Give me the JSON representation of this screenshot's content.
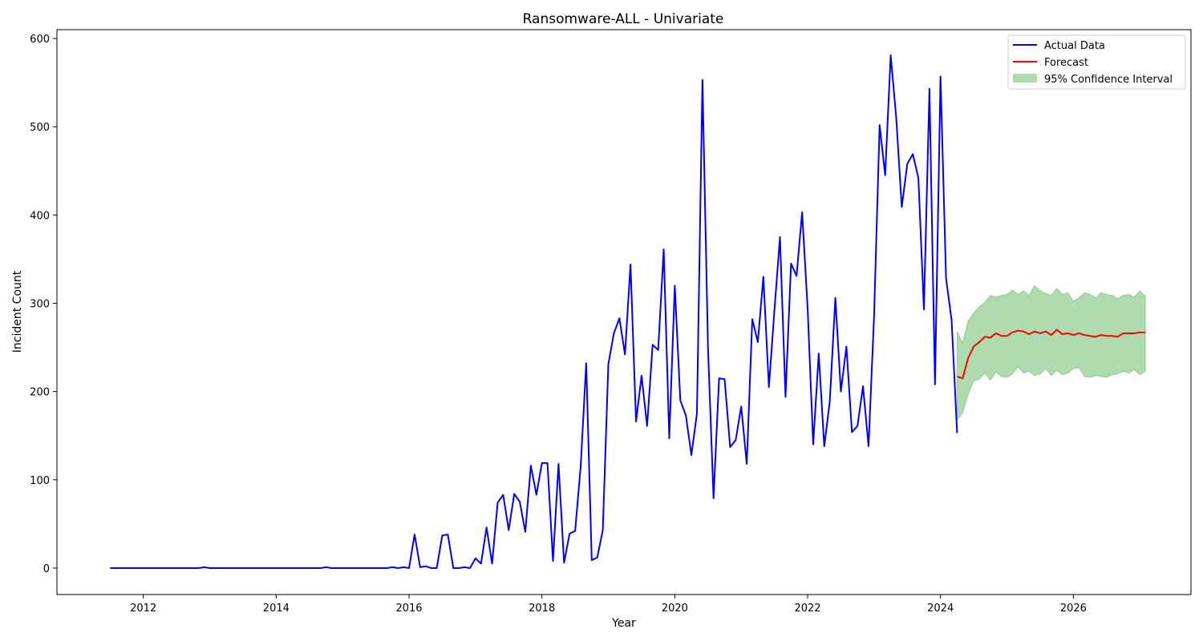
{
  "chart_data": {
    "type": "line",
    "title": "Ransomware-ALL - Univariate",
    "xlabel": "Year",
    "ylabel": "Incident Count",
    "xlim": [
      2010.7,
      2027.77
    ],
    "ylim": [
      -30,
      610
    ],
    "x_ticks": [
      2012,
      2014,
      2016,
      2018,
      2020,
      2022,
      2024,
      2026
    ],
    "y_ticks": [
      0,
      100,
      200,
      300,
      400,
      500,
      600
    ],
    "grid": false,
    "legend_position": "top-right",
    "colors": {
      "actual": "#0000ff",
      "forecast": "#ff0000",
      "ci_fill": "#2ca02c"
    },
    "legend": [
      {
        "key": "actual",
        "label": "Actual Data"
      },
      {
        "key": "forecast",
        "label": "Forecast"
      },
      {
        "key": "ci",
        "label": "95% Confidence Interval"
      }
    ],
    "series": [
      {
        "key": "actual",
        "name": "Actual Data",
        "x": [
          "2011-07",
          "2011-08",
          "2011-09",
          "2011-10",
          "2011-11",
          "2011-12",
          "2012-01",
          "2012-02",
          "2012-03",
          "2012-04",
          "2012-05",
          "2012-06",
          "2012-07",
          "2012-08",
          "2012-09",
          "2012-10",
          "2012-11",
          "2012-12",
          "2013-01",
          "2013-02",
          "2013-03",
          "2013-04",
          "2013-05",
          "2013-06",
          "2013-07",
          "2013-08",
          "2013-09",
          "2013-10",
          "2013-11",
          "2013-12",
          "2014-01",
          "2014-02",
          "2014-03",
          "2014-04",
          "2014-05",
          "2014-06",
          "2014-07",
          "2014-08",
          "2014-09",
          "2014-10",
          "2014-11",
          "2014-12",
          "2015-01",
          "2015-02",
          "2015-03",
          "2015-04",
          "2015-05",
          "2015-06",
          "2015-07",
          "2015-08",
          "2015-09",
          "2015-10",
          "2015-11",
          "2015-12",
          "2016-01",
          "2016-02",
          "2016-03",
          "2016-04",
          "2016-05",
          "2016-06",
          "2016-07",
          "2016-08",
          "2016-09",
          "2016-10",
          "2016-11",
          "2016-12",
          "2017-01",
          "2017-02",
          "2017-03",
          "2017-04",
          "2017-05",
          "2017-06",
          "2017-07",
          "2017-08",
          "2017-09",
          "2017-10",
          "2017-11",
          "2017-12",
          "2018-01",
          "2018-02",
          "2018-03",
          "2018-04",
          "2018-05",
          "2018-06",
          "2018-07",
          "2018-08",
          "2018-09",
          "2018-10",
          "2018-11",
          "2018-12",
          "2019-01",
          "2019-02",
          "2019-03",
          "2019-04",
          "2019-05",
          "2019-06",
          "2019-07",
          "2019-08",
          "2019-09",
          "2019-10",
          "2019-11",
          "2019-12",
          "2020-01",
          "2020-02",
          "2020-03",
          "2020-04",
          "2020-05",
          "2020-06",
          "2020-07",
          "2020-08",
          "2020-09",
          "2020-10",
          "2020-11",
          "2020-12",
          "2021-01",
          "2021-02",
          "2021-03",
          "2021-04",
          "2021-05",
          "2021-06",
          "2021-07",
          "2021-08",
          "2021-09",
          "2021-10",
          "2021-11",
          "2021-12",
          "2022-01",
          "2022-02",
          "2022-03",
          "2022-04",
          "2022-05",
          "2022-06",
          "2022-07",
          "2022-08",
          "2022-09",
          "2022-10",
          "2022-11",
          "2022-12",
          "2023-01",
          "2023-02",
          "2023-03",
          "2023-04",
          "2023-05",
          "2023-06",
          "2023-07",
          "2023-08",
          "2023-09",
          "2023-10",
          "2023-11",
          "2023-12",
          "2024-01",
          "2024-02",
          "2024-03",
          "2024-04"
        ],
        "y": [
          0,
          0,
          0,
          0,
          0,
          0,
          0,
          0,
          0,
          0,
          0,
          0,
          0,
          0,
          0,
          0,
          0,
          1,
          0,
          0,
          0,
          0,
          0,
          0,
          0,
          0,
          0,
          0,
          0,
          0,
          0,
          0,
          0,
          0,
          0,
          0,
          0,
          0,
          0,
          1,
          0,
          0,
          0,
          0,
          0,
          0,
          0,
          0,
          0,
          0,
          0,
          1,
          0,
          1,
          0,
          38,
          1,
          2,
          0,
          0,
          37,
          38,
          0,
          0,
          1,
          0,
          11,
          5,
          46,
          5,
          74,
          83,
          43,
          84,
          75,
          41,
          116,
          83,
          119,
          119,
          8,
          118,
          6,
          39,
          42,
          115,
          232,
          9,
          12,
          43,
          231,
          266,
          283,
          242,
          344,
          166,
          218,
          161,
          253,
          247,
          361,
          147,
          320,
          190,
          173,
          128,
          175,
          553,
          249,
          79,
          215,
          214,
          137,
          145,
          183,
          118,
          282,
          256,
          330,
          205,
          292,
          375,
          194,
          345,
          331,
          403,
          294,
          140,
          243,
          138,
          189,
          306,
          200,
          251,
          154,
          161,
          206,
          138,
          286,
          502,
          445,
          581,
          510,
          409,
          458,
          469,
          442,
          293,
          543,
          208,
          557,
          328,
          281,
          153
        ]
      },
      {
        "key": "forecast",
        "name": "Forecast",
        "x": [
          "2024-04",
          "2024-05",
          "2024-06",
          "2024-07",
          "2024-08",
          "2024-09",
          "2024-10",
          "2024-11",
          "2024-12",
          "2025-01",
          "2025-02",
          "2025-03",
          "2025-04",
          "2025-05",
          "2025-06",
          "2025-07",
          "2025-08",
          "2025-09",
          "2025-10",
          "2025-11",
          "2025-12",
          "2026-01",
          "2026-02",
          "2026-03",
          "2026-04",
          "2026-05",
          "2026-06",
          "2026-07",
          "2026-08",
          "2026-09",
          "2026-10",
          "2026-11",
          "2026-12",
          "2027-01",
          "2027-02"
        ],
        "y": [
          217,
          215,
          238,
          251,
          256,
          262,
          261,
          266,
          263,
          263,
          267,
          269,
          268,
          265,
          268,
          266,
          268,
          264,
          270,
          265,
          266,
          264,
          266,
          264,
          263,
          262,
          264,
          263,
          263,
          262,
          266,
          266,
          266,
          267,
          267
        ],
        "ci_lower": [
          168,
          176,
          197,
          212,
          214,
          221,
          213,
          222,
          217,
          216,
          220,
          228,
          221,
          223,
          218,
          220,
          226,
          218,
          224,
          219,
          221,
          226,
          227,
          217,
          216,
          218,
          217,
          216,
          219,
          220,
          223,
          221,
          225,
          219,
          223
        ],
        "ci_upper": [
          268,
          255,
          280,
          289,
          296,
          301,
          309,
          307,
          309,
          310,
          315,
          310,
          314,
          309,
          320,
          314,
          311,
          309,
          317,
          310,
          312,
          302,
          306,
          312,
          310,
          306,
          312,
          310,
          309,
          305,
          309,
          310,
          307,
          314,
          308
        ]
      }
    ]
  }
}
